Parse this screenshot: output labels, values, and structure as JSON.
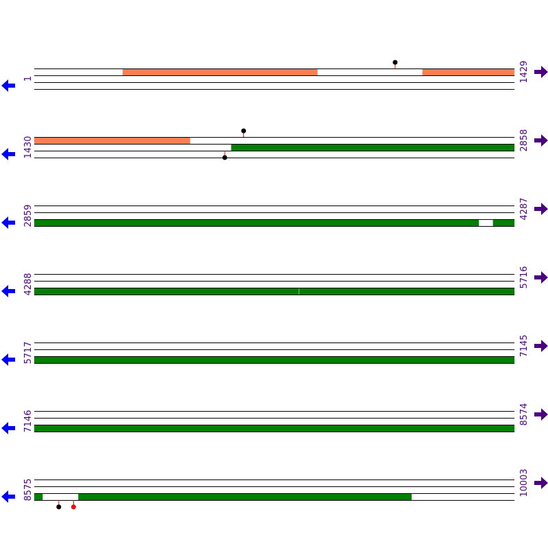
{
  "colors": {
    "frame_line": "#000000",
    "feature_salmon": "#ff7f50",
    "feature_green": "#008000",
    "label": "#4b0082",
    "reverse_arrow": "#0000ff",
    "forward_arrow": "#4b0082",
    "marker_black": "#000000",
    "marker_red": "#ff0000",
    "marker_stem": "#ff0000"
  },
  "icons": {
    "reverse": "left-arrow-icon",
    "forward": "right-arrow-icon"
  },
  "rows": [
    {
      "start": "1",
      "end": "1429",
      "from": 1,
      "to": 1429,
      "features": [
        {
          "track": 0,
          "from": 264,
          "to": 843,
          "color": "salmon"
        },
        {
          "track": 0,
          "from": 1156,
          "to": 1429,
          "color": "salmon"
        }
      ],
      "markers": [
        {
          "pos": 1075,
          "track": 0,
          "side": "top",
          "color": "black"
        }
      ]
    },
    {
      "start": "1430",
      "end": "2858",
      "from": 1430,
      "to": 2858,
      "features": [
        {
          "track": 0,
          "from": 1430,
          "to": 1893,
          "color": "salmon"
        },
        {
          "track": 1,
          "from": 2016,
          "to": 2858,
          "color": "green"
        }
      ],
      "markers": [
        {
          "pos": 2053,
          "track": 0,
          "side": "top",
          "color": "black"
        },
        {
          "pos": 1997,
          "track": 1,
          "side": "bottom",
          "color": "black"
        }
      ]
    },
    {
      "start": "2859",
      "end": "4287",
      "from": 2859,
      "to": 4287,
      "features": [
        {
          "track": 2,
          "from": 2859,
          "to": 4181,
          "color": "green"
        },
        {
          "track": 2,
          "from": 4224,
          "to": 4287,
          "color": "green"
        }
      ],
      "markers": []
    },
    {
      "start": "4288",
      "end": "5716",
      "from": 4288,
      "to": 5716,
      "features": [
        {
          "track": 2,
          "from": 4288,
          "to": 5074,
          "color": "green"
        },
        {
          "track": 2,
          "from": 5076,
          "to": 5716,
          "color": "green"
        }
      ],
      "markers": []
    },
    {
      "start": "5717",
      "end": "7145",
      "from": 5717,
      "to": 7145,
      "features": [
        {
          "track": 2,
          "from": 5717,
          "to": 7145,
          "color": "green"
        }
      ],
      "markers": []
    },
    {
      "start": "7146",
      "end": "8574",
      "from": 7146,
      "to": 8574,
      "features": [
        {
          "track": 2,
          "from": 7146,
          "to": 8574,
          "color": "green"
        }
      ],
      "markers": []
    },
    {
      "start": "8575",
      "end": "10003",
      "from": 8575,
      "to": 10003,
      "features": [
        {
          "track": 2,
          "from": 8575,
          "to": 8599,
          "color": "green"
        },
        {
          "track": 2,
          "from": 8706,
          "to": 9697,
          "color": "green"
        }
      ],
      "markers": [
        {
          "pos": 8648,
          "track": 2,
          "side": "bottom",
          "color": "black"
        },
        {
          "pos": 8692,
          "track": 2,
          "side": "bottom",
          "color": "red"
        }
      ]
    }
  ]
}
